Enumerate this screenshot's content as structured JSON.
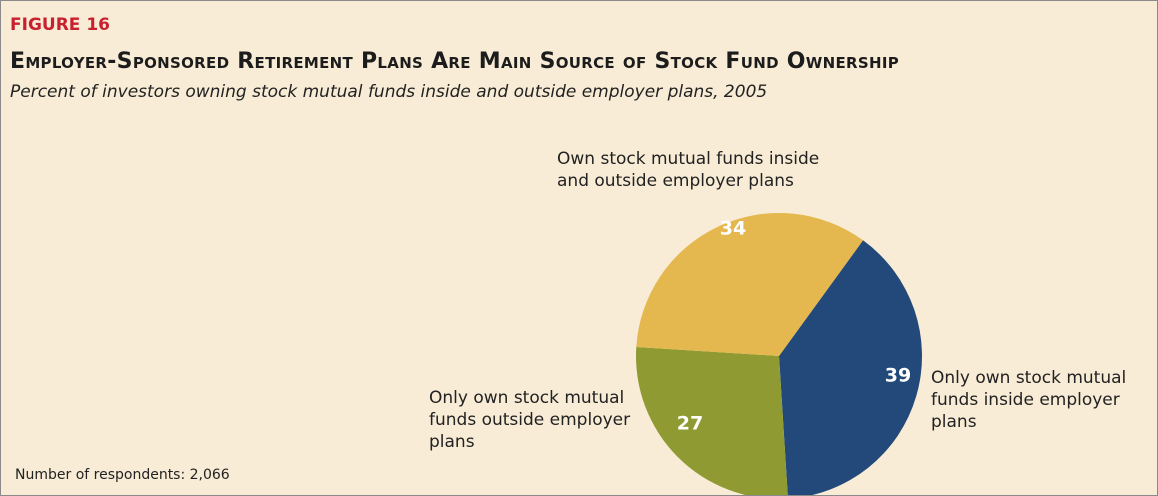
{
  "chart_data": {
    "type": "pie",
    "label": "FIGURE 16",
    "title": "Employer-Sponsored Retirement Plans Are Main Source of Stock Fund Ownership",
    "subtitle": "Percent of investors owning stock mutual funds inside and outside employer plans, 2005",
    "note": "Number of respondents: 2,066",
    "categories": [
      "Only own stock mutual funds inside employer plans",
      "Only own stock mutual funds outside employer plans",
      "Own stock mutual funds inside and outside employer plans"
    ],
    "values": [
      39,
      27,
      34
    ],
    "colors": [
      "#23497a",
      "#8f9b32",
      "#e5b84f"
    ]
  }
}
